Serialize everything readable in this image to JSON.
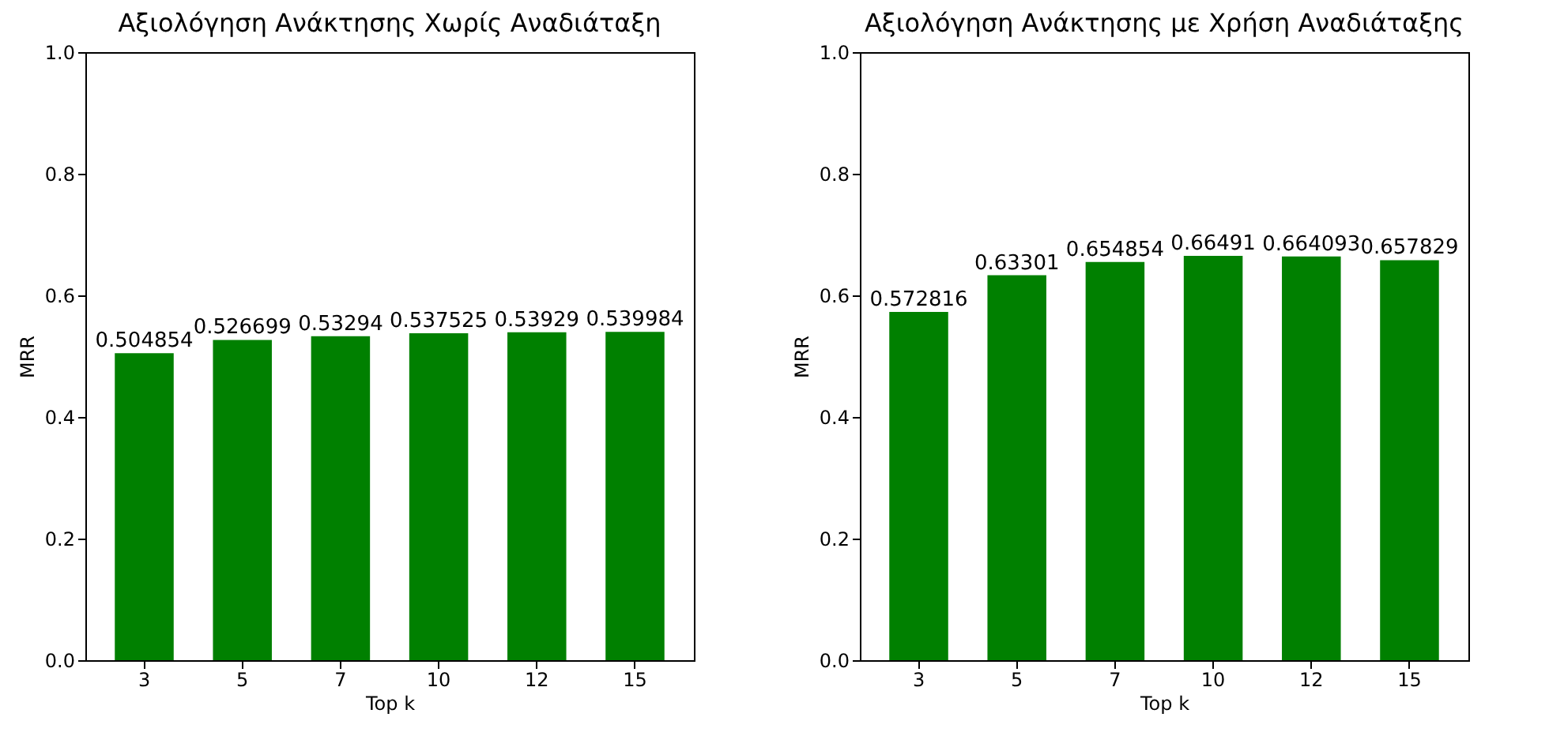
{
  "chart_data": [
    {
      "type": "bar",
      "title": "Αξιολόγηση Ανάκτησης Χωρίς Αναδιάταξη",
      "xlabel": "Top k",
      "ylabel": "MRR",
      "categories": [
        "3",
        "5",
        "7",
        "10",
        "12",
        "15"
      ],
      "values": [
        0.504854,
        0.526699,
        0.53294,
        0.537525,
        0.53929,
        0.539984
      ],
      "color": "#008000",
      "ylim": [
        0,
        1
      ],
      "yticks": [
        {
          "value": 0,
          "label": "0.0"
        },
        {
          "value": 0.2,
          "label": "0.2"
        },
        {
          "value": 0.4,
          "label": "0.4"
        },
        {
          "value": 0.6,
          "label": "0.6"
        },
        {
          "value": 0.8,
          "label": "0.8"
        },
        {
          "value": 1,
          "label": "1.0"
        }
      ],
      "data_labels": true,
      "grid": false
    },
    {
      "type": "bar",
      "title": "Αξιολόγηση Ανάκτησης με Χρήση Αναδιάταξης",
      "xlabel": "Top k",
      "ylabel": "MRR",
      "categories": [
        "3",
        "5",
        "7",
        "10",
        "12",
        "15"
      ],
      "values": [
        0.572816,
        0.63301,
        0.654854,
        0.66491,
        0.664093,
        0.657829
      ],
      "color": "#008000",
      "ylim": [
        0,
        1
      ],
      "yticks": [
        {
          "value": 0,
          "label": "0.0"
        },
        {
          "value": 0.2,
          "label": "0.2"
        },
        {
          "value": 0.4,
          "label": "0.4"
        },
        {
          "value": 0.6,
          "label": "0.6"
        },
        {
          "value": 0.8,
          "label": "0.8"
        },
        {
          "value": 1,
          "label": "1.0"
        }
      ],
      "data_labels": true,
      "grid": false
    }
  ]
}
